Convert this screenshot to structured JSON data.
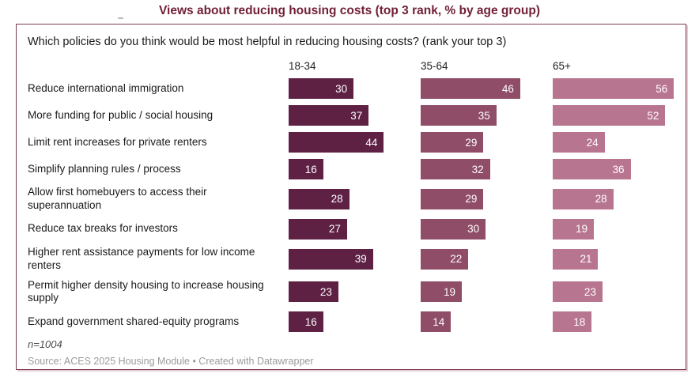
{
  "chart_data": {
    "type": "bar",
    "orientation": "horizontal",
    "title": "Views about reducing housing costs (top 3 rank, % by age group)",
    "subtitle": "Which policies do you think would be most helpful in reducing housing costs? (rank your top 3)",
    "categories": [
      "Reduce international immigration",
      "More funding for public / social housing",
      "Limit rent increases for private renters",
      "Simplify planning rules / process",
      "Allow first homebuyers to access their superannuation",
      "Reduce tax breaks for investors",
      "Higher rent assistance payments for low income renters",
      "Permit higher density housing to increase housing supply",
      "Expand government shared-equity programs"
    ],
    "series": [
      {
        "name": "18-34",
        "color": "#5e2144",
        "values": [
          30,
          37,
          44,
          16,
          28,
          27,
          39,
          23,
          16
        ]
      },
      {
        "name": "35-64",
        "color": "#8f4d67",
        "values": [
          46,
          35,
          29,
          32,
          29,
          30,
          22,
          19,
          14
        ]
      },
      {
        "name": "65+",
        "color": "#b8758f",
        "values": [
          56,
          52,
          24,
          36,
          28,
          19,
          21,
          23,
          18
        ]
      }
    ],
    "xlim": [
      0,
      61
    ],
    "grid": "off",
    "legend_position": "column-headers",
    "value_label_position": "inside-end",
    "footnote": "n=1004",
    "source": "Source: ACES 2025 Housing Module • Created with Datawrapper"
  },
  "colors": {
    "title": "#701f35",
    "border": "#7b3b4d",
    "border_shadow": "#e8ccd4",
    "label_text": "#1a1a1a",
    "value_text": "#ffffff",
    "footnote_text": "#4d4d4d",
    "source_text": "#9b9b9b",
    "background": "#ffffff"
  }
}
